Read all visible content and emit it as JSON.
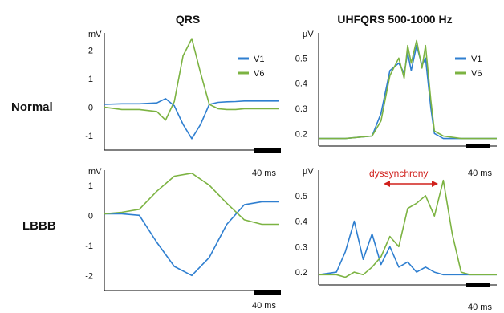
{
  "column_titles": [
    "QRS",
    "UHFQRS 500-1000 Hz"
  ],
  "row_labels": [
    "Normal",
    "LBBB"
  ],
  "colors": {
    "V1": "#2f7fd0",
    "V6": "#7cb342",
    "annotation": "#d0201c",
    "axis": "#000000"
  },
  "chart_data": [
    {
      "type": "line",
      "title": "QRS",
      "row": "Normal",
      "ylabel": "mV",
      "ylim": [
        -1.5,
        2.6
      ],
      "y_ticks": [
        "2",
        "1",
        "0",
        "-1"
      ],
      "y_tick_values": [
        2,
        1,
        0,
        -1
      ],
      "legend": [
        "V1",
        "V6"
      ],
      "legend_position": "right",
      "scale_bar": "40 ms",
      "x": [
        0,
        0.1,
        0.2,
        0.3,
        0.35,
        0.4,
        0.45,
        0.5,
        0.55,
        0.6,
        0.65,
        0.7,
        0.75,
        0.8,
        0.9,
        1.0
      ],
      "series": [
        {
          "name": "V1",
          "values": [
            0.1,
            0.12,
            0.12,
            0.15,
            0.3,
            0.05,
            -0.6,
            -1.1,
            -0.6,
            0.1,
            0.17,
            0.19,
            0.2,
            0.22,
            0.22,
            0.22
          ]
        },
        {
          "name": "V6",
          "values": [
            0.0,
            -0.08,
            -0.08,
            -0.15,
            -0.45,
            0.2,
            1.8,
            2.4,
            1.2,
            0.1,
            -0.05,
            -0.08,
            -0.08,
            -0.05,
            -0.05,
            -0.05
          ]
        }
      ]
    },
    {
      "type": "line",
      "title": "UHFQRS 500-1000 Hz",
      "row": "Normal",
      "ylabel": "µV",
      "ylim": [
        0.15,
        0.6
      ],
      "y_ticks": [
        "0.5",
        "0.4",
        "0.3",
        "0.2"
      ],
      "y_tick_values": [
        0.5,
        0.4,
        0.3,
        0.2
      ],
      "legend": [
        "V1",
        "V6"
      ],
      "legend_position": "right",
      "scale_bar": "40 ms",
      "x": [
        0,
        0.15,
        0.3,
        0.35,
        0.4,
        0.45,
        0.48,
        0.5,
        0.52,
        0.55,
        0.58,
        0.6,
        0.63,
        0.65,
        0.7,
        0.8,
        1.0
      ],
      "series": [
        {
          "name": "V1",
          "values": [
            0.18,
            0.18,
            0.19,
            0.28,
            0.45,
            0.48,
            0.44,
            0.52,
            0.45,
            0.55,
            0.47,
            0.5,
            0.3,
            0.2,
            0.18,
            0.18,
            0.18
          ]
        },
        {
          "name": "V6",
          "values": [
            0.18,
            0.18,
            0.19,
            0.25,
            0.43,
            0.5,
            0.42,
            0.55,
            0.48,
            0.57,
            0.46,
            0.55,
            0.33,
            0.21,
            0.19,
            0.18,
            0.18
          ]
        }
      ]
    },
    {
      "type": "line",
      "title": "QRS",
      "row": "LBBB",
      "ylabel": "mV",
      "ylim": [
        -2.5,
        1.5
      ],
      "y_ticks": [
        "1",
        "0",
        "-1",
        "-2"
      ],
      "y_tick_values": [
        1,
        0,
        -1,
        -2
      ],
      "scale_bar": "40 ms",
      "x": [
        0,
        0.1,
        0.2,
        0.3,
        0.4,
        0.5,
        0.6,
        0.7,
        0.8,
        0.9,
        1.0
      ],
      "series": [
        {
          "name": "V1",
          "values": [
            0.05,
            0.05,
            0.0,
            -0.9,
            -1.7,
            -2.0,
            -1.4,
            -0.3,
            0.35,
            0.45,
            0.45
          ]
        },
        {
          "name": "V6",
          "values": [
            0.05,
            0.1,
            0.2,
            0.8,
            1.3,
            1.4,
            1.0,
            0.4,
            -0.15,
            -0.3,
            -0.3
          ]
        }
      ]
    },
    {
      "type": "line",
      "title": "UHFQRS 500-1000 Hz",
      "row": "LBBB",
      "ylabel": "µV",
      "ylim": [
        0.15,
        0.6
      ],
      "y_ticks": [
        "0.5",
        "0.4",
        "0.3",
        "0.2"
      ],
      "y_tick_values": [
        0.5,
        0.4,
        0.3,
        0.2
      ],
      "scale_bar": "40 ms",
      "annotation": "dyssynchrony",
      "x": [
        0,
        0.1,
        0.15,
        0.2,
        0.25,
        0.3,
        0.35,
        0.4,
        0.45,
        0.5,
        0.55,
        0.6,
        0.65,
        0.7,
        0.75,
        0.8,
        0.85,
        1.0
      ],
      "series": [
        {
          "name": "V1",
          "values": [
            0.19,
            0.2,
            0.28,
            0.4,
            0.25,
            0.35,
            0.23,
            0.3,
            0.22,
            0.24,
            0.2,
            0.22,
            0.2,
            0.19,
            0.19,
            0.19,
            0.19,
            0.19
          ]
        },
        {
          "name": "V6",
          "values": [
            0.19,
            0.19,
            0.18,
            0.2,
            0.19,
            0.22,
            0.26,
            0.34,
            0.3,
            0.45,
            0.47,
            0.5,
            0.42,
            0.56,
            0.35,
            0.2,
            0.19,
            0.19
          ]
        }
      ]
    }
  ]
}
